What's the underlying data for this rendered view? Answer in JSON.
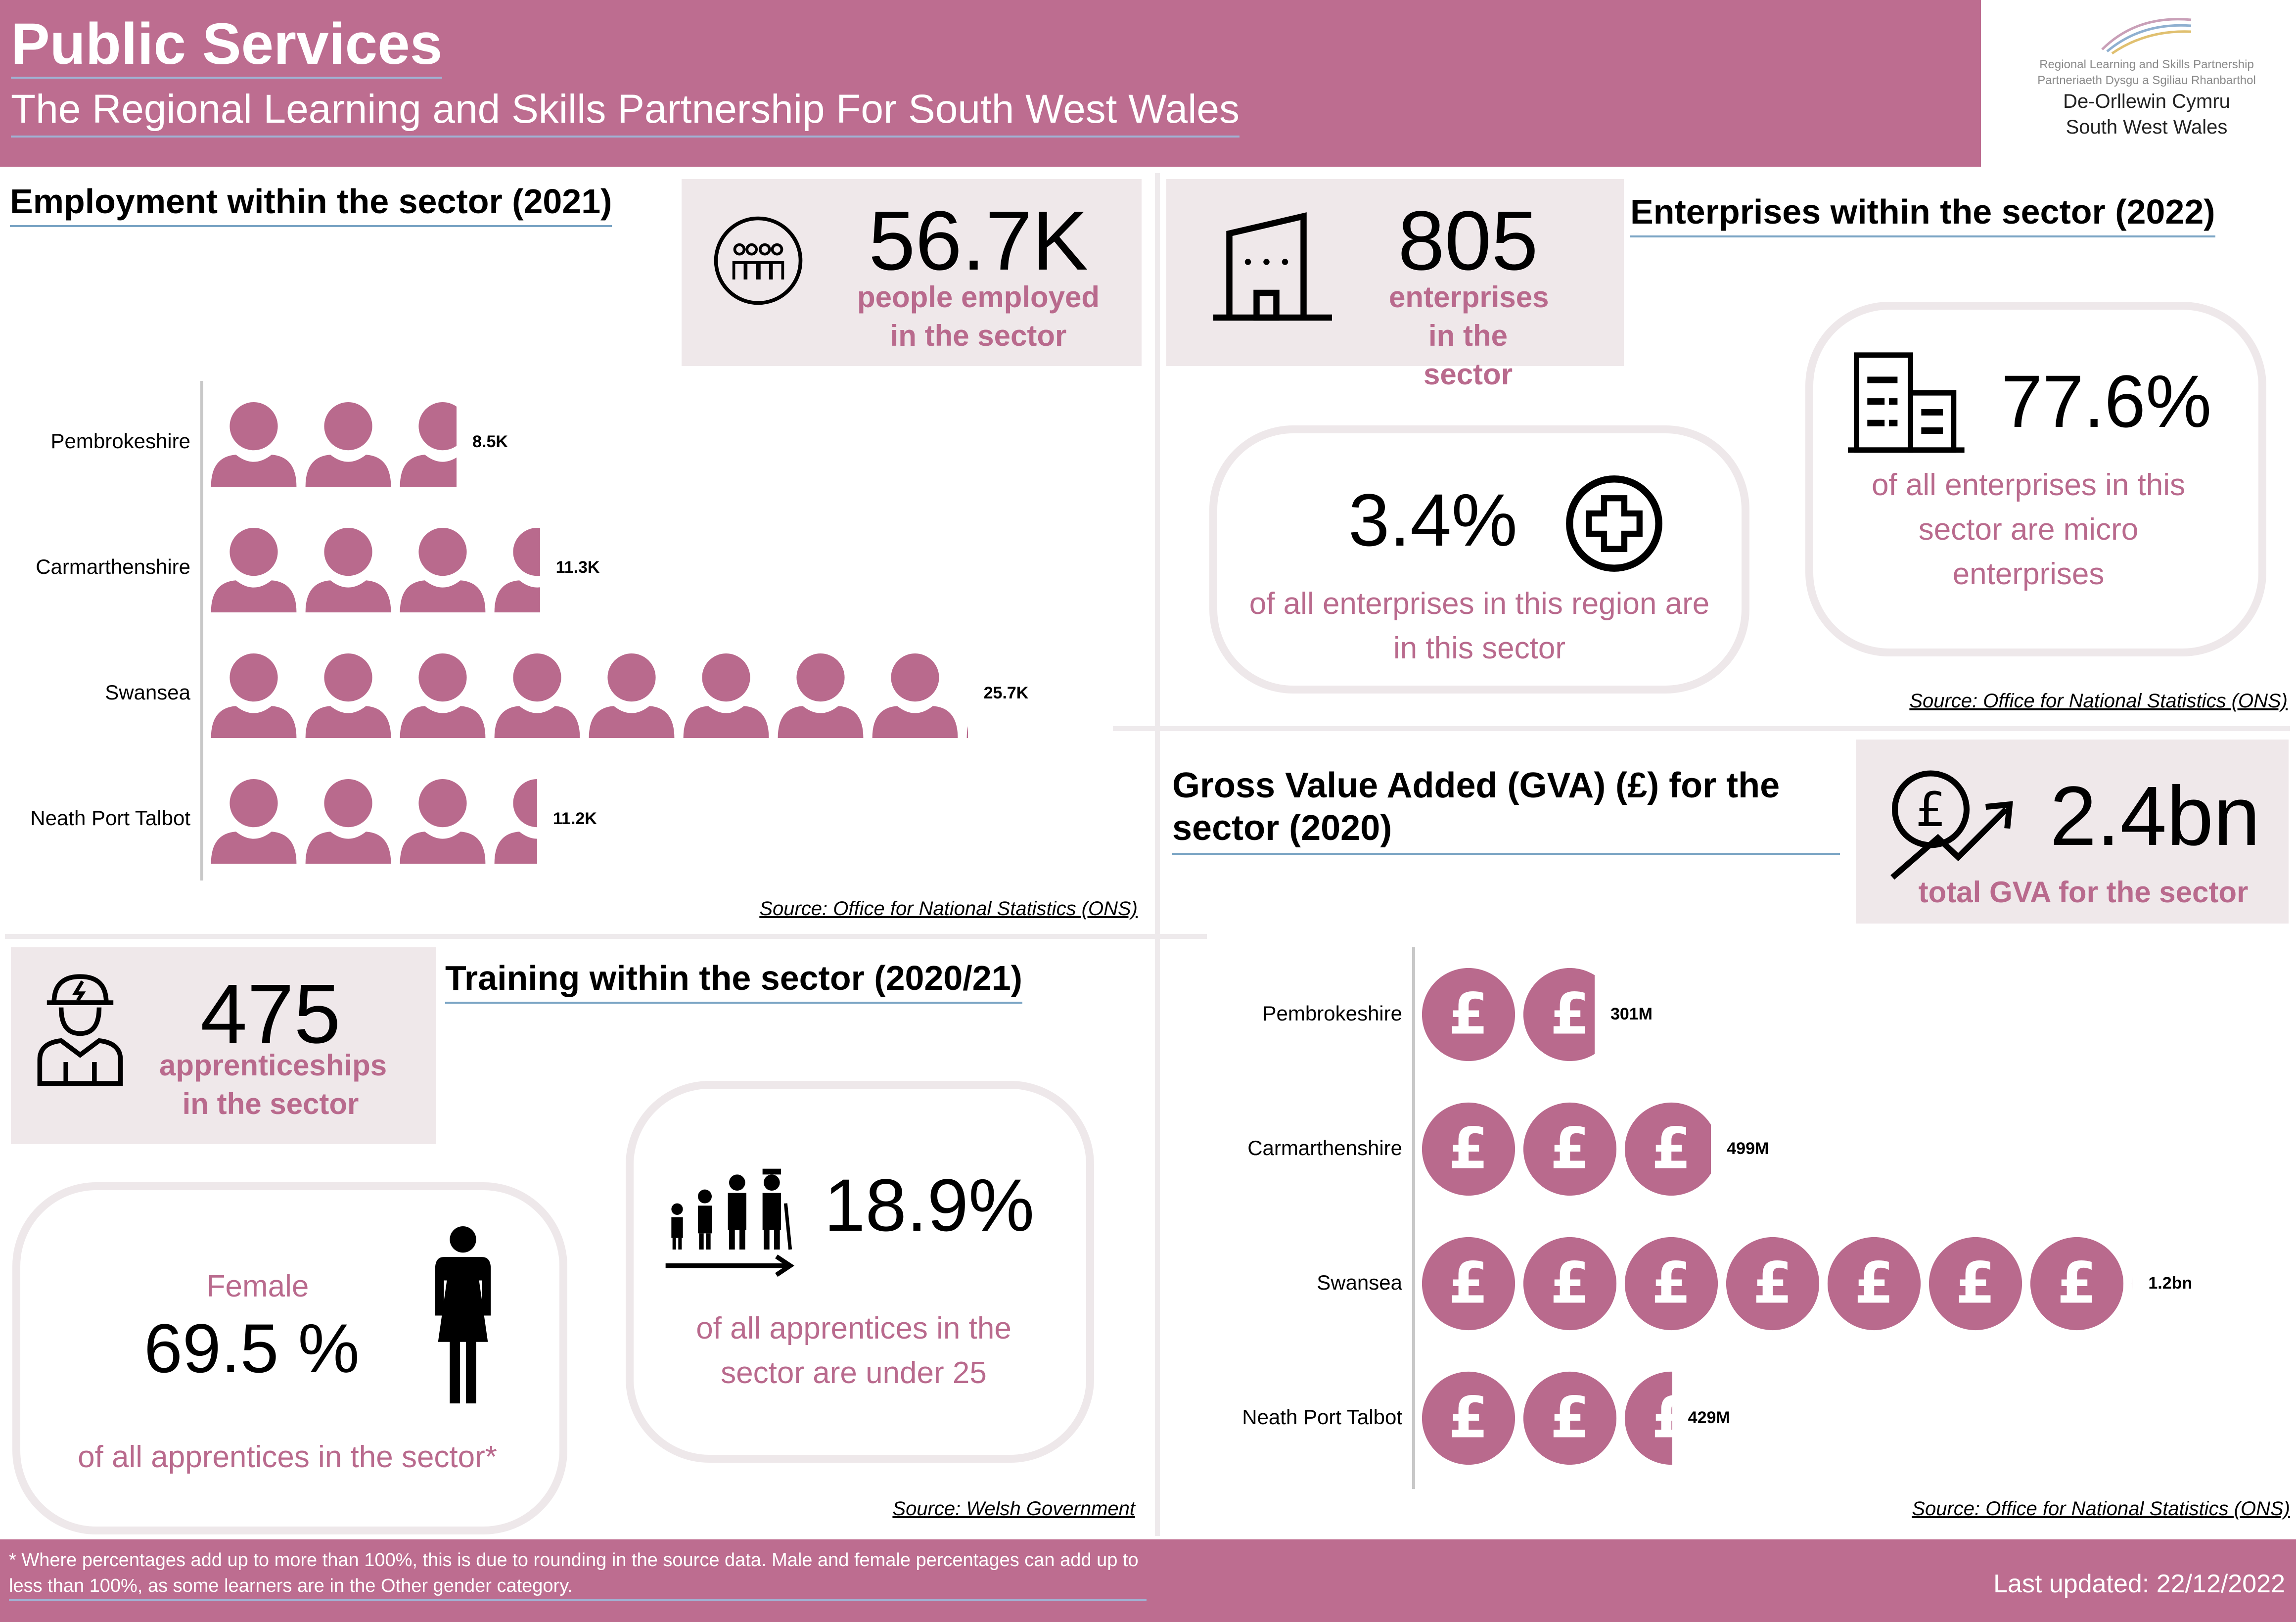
{
  "header": {
    "title": "Public Services",
    "subtitle": "The Regional Learning and Skills Partnership For South West Wales"
  },
  "logo": {
    "line1": "Regional Learning and Skills Partnership",
    "line2": "Partneriaeth Dysgu a Sgiliau Rhanbarthol",
    "line3": "De-Orllewin Cymru",
    "line4": "South West Wales"
  },
  "employment": {
    "title": "Employment within the sector (2021)",
    "card_value": "56.7K",
    "card_label": "people employed in the sector",
    "source": "Source: Office for National Statistics (ONS)"
  },
  "enterprises": {
    "title": "Enterprises within the sector (2022)",
    "card_value": "805",
    "card_label": "enterprises in the sector",
    "region_pct": "3.4%",
    "region_text": "of all enterprises in this region are in this sector",
    "micro_pct": "77.6%",
    "micro_text": "of all enterprises in this sector are micro enterprises",
    "source": "Source: Office for National Statistics (ONS)"
  },
  "gva": {
    "title": "Gross Value Added (GVA) (£) for the sector (2020)",
    "card_value": "2.4bn",
    "card_label": "total GVA for the sector",
    "source": "Source: Office for National Statistics (ONS)"
  },
  "training": {
    "title": "Training within the sector (2020/21)",
    "card_value": "475",
    "card_label": "apprenticeships in the sector",
    "female_label": "Female",
    "female_pct": "69.5 %",
    "female_text": "of all apprentices in the sector*",
    "under25_pct": "18.9%",
    "under25_text": "of all apprentices in the sector are under 25",
    "source": "Source: Welsh Government"
  },
  "footer": {
    "note": "* Where percentages add up to more than 100%, this is due to rounding in the source data. Male and female percentages can add up to less than 100%, as some learners are in the Other gender category.",
    "updated": "Last updated: 22/12/2022"
  },
  "colors": {
    "accent": "#bd6d90",
    "icon_fill": "#b96a8d",
    "card_bg": "#efe8ea"
  },
  "chart_data": [
    {
      "type": "bar",
      "categories": [
        "Pembrokeshire",
        "Carmarthenshire",
        "Swansea",
        "Neath Port Talbot"
      ],
      "values": [
        8.5,
        11.3,
        25.7,
        11.2
      ],
      "value_labels": [
        "8.5K",
        "11.3K",
        "25.7K",
        "11.2K"
      ],
      "unit_per_icon": 3.2,
      "icon": "person-icon"
    },
    {
      "type": "bar",
      "categories": [
        "Pembrokeshire",
        "Carmarthenshire",
        "Swansea",
        "Neath Port Talbot"
      ],
      "values": [
        301,
        499,
        1200,
        429
      ],
      "value_labels": [
        "301M",
        "499M",
        "1.2bn",
        "429M"
      ],
      "unit_per_icon": 171,
      "icon": "pound-coin-icon"
    }
  ]
}
